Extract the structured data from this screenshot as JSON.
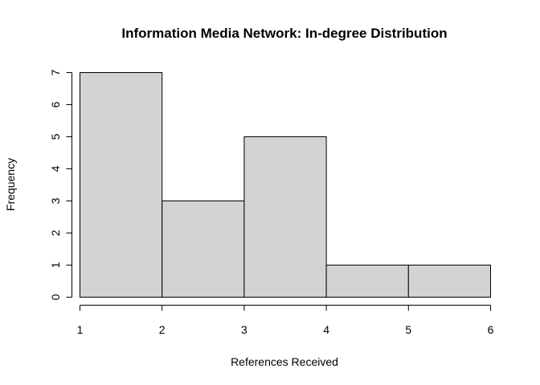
{
  "chart_data": {
    "type": "bar",
    "title": "Information Media Network: In-degree Distribution",
    "xlabel": "References Received",
    "ylabel": "Frequency",
    "bins": [
      {
        "x0": 1,
        "x1": 2,
        "count": 7
      },
      {
        "x0": 2,
        "x1": 3,
        "count": 3
      },
      {
        "x0": 3,
        "x1": 4,
        "count": 5
      },
      {
        "x0": 4,
        "x1": 5,
        "count": 1
      },
      {
        "x0": 5,
        "x1": 6,
        "count": 1
      }
    ],
    "xlim": [
      1,
      6
    ],
    "ylim": [
      0,
      7
    ],
    "xticks": [
      "1",
      "2",
      "3",
      "4",
      "5",
      "6"
    ],
    "yticks": [
      "0",
      "1",
      "2",
      "3",
      "4",
      "5",
      "6",
      "7"
    ],
    "bar_color": "#d3d3d3",
    "edge_color": "#000000",
    "grid": false
  }
}
